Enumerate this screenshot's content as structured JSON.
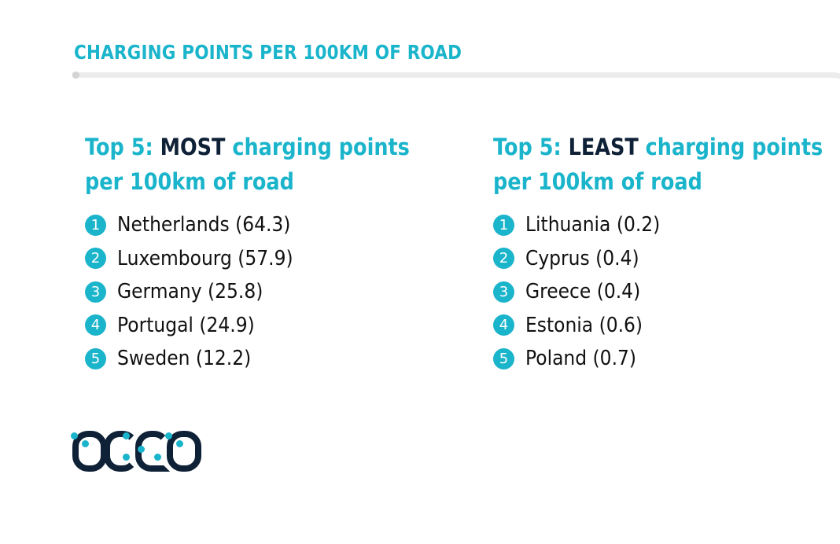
{
  "title": "CHARGING POINTS PER 100KM OF ROAD",
  "most": {
    "heading_prefix": "Top 5: ",
    "heading_emphasis": "MOST",
    "heading_suffix": " charging points",
    "heading_line2": "per 100km of road",
    "items": [
      {
        "rank": "1",
        "text": "Netherlands (64.3)"
      },
      {
        "rank": "2",
        "text": "Luxembourg (57.9)"
      },
      {
        "rank": "3",
        "text": "Germany (25.8)"
      },
      {
        "rank": "4",
        "text": "Portugal (24.9)"
      },
      {
        "rank": "5",
        "text": "Sweden (12.2)"
      }
    ]
  },
  "least": {
    "heading_prefix": "Top 5: ",
    "heading_emphasis": "LEAST",
    "heading_suffix": " charging points",
    "heading_line2": "per 100km of road",
    "items": [
      {
        "rank": "1",
        "text": "Lithuania (0.2)"
      },
      {
        "rank": "2",
        "text": "Cyprus (0.4)"
      },
      {
        "rank": "3",
        "text": "Greece (0.4)"
      },
      {
        "rank": "4",
        "text": "Estonia (0.6)"
      },
      {
        "rank": "5",
        "text": "Poland (0.7)"
      }
    ]
  },
  "logo": "acea",
  "colors": {
    "accent": "#1ab4cb",
    "dark": "#0f2137"
  }
}
